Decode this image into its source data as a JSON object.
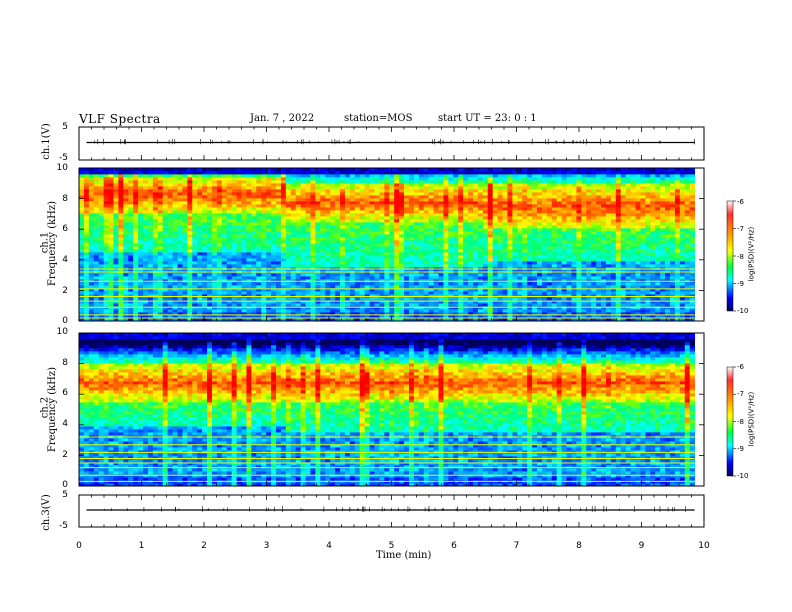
{
  "header": {
    "title": "VLF Spectra",
    "date": "Jan. 7 , 2022",
    "station": "station=MOS",
    "start": "start UT =  23: 0  : 1"
  },
  "colorbar": {
    "label": "log(PSD)(V²/Hz)",
    "ticks": [
      "-6",
      "-7",
      "-8",
      "-9",
      "-10"
    ],
    "colors": [
      "#ffffff",
      "#ff0000",
      "#ffaa00",
      "#ffff00",
      "#00ff00",
      "#00ffff",
      "#0000ff",
      "#000080"
    ]
  },
  "chart_data": [
    {
      "type": "line",
      "name": "ch1-waveform",
      "ylabel": "ch.1(V)",
      "ylim": [
        -5,
        5
      ],
      "yticks": [
        "5",
        "-5"
      ],
      "values_note_free": true,
      "x": [
        0,
        10
      ],
      "y": [
        0,
        0
      ]
    },
    {
      "type": "heatmap",
      "ylabel": "ch.1\nFrequency (kHz)",
      "ylabel_line1": "ch.1",
      "ylabel_line2": "Frequency (kHz)",
      "xlim": [
        0,
        10
      ],
      "ylim": [
        0,
        10
      ],
      "yticks": [
        "0",
        "2",
        "4",
        "6",
        "8",
        "10"
      ],
      "colorbar_range": [
        -10,
        -6
      ],
      "segments": [
        {
          "x": [
            0,
            3.3
          ],
          "intense_band_khz": [
            7,
            9.5
          ],
          "low_band_khz": [
            0.5,
            4.5
          ]
        },
        {
          "x": [
            3.3,
            6.5
          ],
          "intense_band_khz": [
            6.5,
            9.0
          ],
          "low_band_khz": [
            0.5,
            3.5
          ]
        },
        {
          "x": [
            6.5,
            9.85
          ],
          "intense_band_khz": [
            6.0,
            9.0
          ],
          "low_band_khz": [
            0.5,
            4.0
          ]
        }
      ]
    },
    {
      "type": "heatmap",
      "ylabel": "ch.2\nFrequency (kHz)",
      "ylabel_line1": "ch.2",
      "ylabel_line2": "Frequency (kHz)",
      "xlim": [
        0,
        10
      ],
      "ylim": [
        0,
        10
      ],
      "yticks": [
        "0",
        "2",
        "4",
        "6",
        "8",
        "10"
      ],
      "colorbar_range": [
        -10,
        -6
      ],
      "segments": [
        {
          "x": [
            0,
            3.3
          ],
          "intense_band_khz": [
            5.5,
            8.0
          ],
          "low_band_khz": [
            0.5,
            4.0
          ]
        },
        {
          "x": [
            3.3,
            6.5
          ],
          "intense_band_khz": [
            5.5,
            8.0
          ],
          "low_band_khz": [
            0.5,
            3.5
          ]
        },
        {
          "x": [
            6.5,
            9.85
          ],
          "intense_band_khz": [
            5.5,
            8.0
          ],
          "low_band_khz": [
            0.5,
            3.5
          ]
        }
      ]
    },
    {
      "type": "line",
      "name": "ch3-waveform",
      "ylabel": "ch.3(V)",
      "ylim": [
        -5,
        5
      ],
      "yticks": [
        "5",
        "-5"
      ],
      "x": [
        0,
        10
      ],
      "y": [
        0,
        0
      ]
    }
  ],
  "xaxis": {
    "label": "Time (min)",
    "ticks": [
      "0",
      "1",
      "2",
      "3",
      "4",
      "5",
      "6",
      "7",
      "8",
      "9",
      "10"
    ]
  }
}
